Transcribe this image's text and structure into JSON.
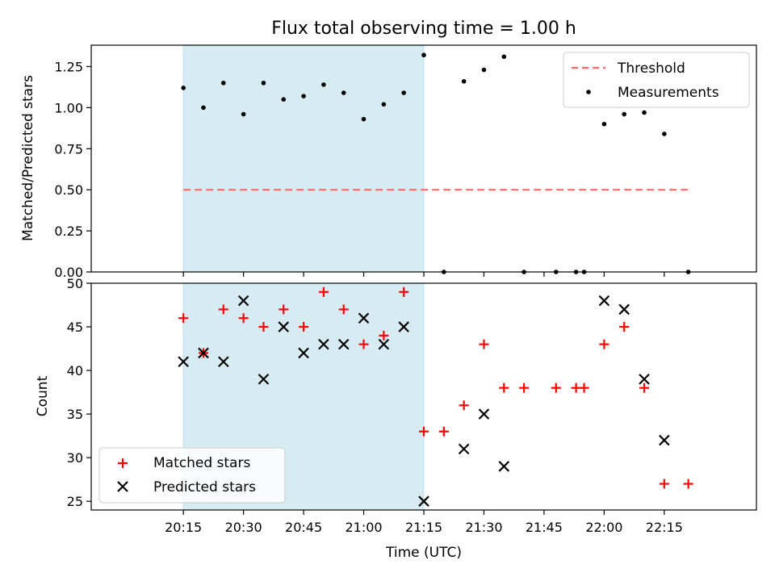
{
  "chart_data": [
    {
      "type": "scatter",
      "panel": "top",
      "title": "Flux total observing time = 1.00 h",
      "xlabel": "",
      "ylabel": "Matched/Predicted stars",
      "ylim": [
        0,
        1.38
      ],
      "yticks": [
        0.0,
        0.25,
        0.5,
        0.75,
        1.0,
        1.25
      ],
      "ytick_labels": [
        "0.00",
        "0.25",
        "0.50",
        "0.75",
        "1.00",
        "1.25"
      ],
      "legend": {
        "placement": "top-right",
        "entries": [
          "Threshold",
          "Measurements"
        ]
      },
      "shaded_interval": {
        "from": "20:15",
        "to": "21:15",
        "color": "#add8e6"
      },
      "threshold": {
        "name": "Threshold",
        "value": 0.5,
        "from": "20:15",
        "to": "22:21",
        "color": "#ff6b6b"
      },
      "series": [
        {
          "name": "Measurements",
          "marker": "dot",
          "color": "#000000",
          "x": [
            "20:15",
            "20:20",
            "20:25",
            "20:30",
            "20:35",
            "20:40",
            "20:45",
            "20:50",
            "20:55",
            "21:00",
            "21:05",
            "21:10",
            "21:15",
            "21:20",
            "21:25",
            "21:30",
            "21:35",
            "21:40",
            "21:48",
            "21:53",
            "21:55",
            "22:00",
            "22:05",
            "22:10",
            "22:15",
            "22:21"
          ],
          "y": [
            1.12,
            1.0,
            1.15,
            0.96,
            1.15,
            1.05,
            1.07,
            1.14,
            1.09,
            0.93,
            1.02,
            1.09,
            1.32,
            0.0,
            1.16,
            1.23,
            1.31,
            0.0,
            0.0,
            0.0,
            0.0,
            0.9,
            0.96,
            0.97,
            0.84,
            0.0
          ]
        }
      ]
    },
    {
      "type": "scatter",
      "panel": "bottom",
      "title": "",
      "xlabel": "Time (UTC)",
      "ylabel": "Count",
      "ylim": [
        24,
        50
      ],
      "yticks": [
        25,
        30,
        35,
        40,
        45,
        50
      ],
      "ytick_labels": [
        "25",
        "30",
        "35",
        "40",
        "45",
        "50"
      ],
      "xticks": [
        "20:15",
        "20:30",
        "20:45",
        "21:00",
        "21:15",
        "21:30",
        "21:45",
        "22:00",
        "22:15"
      ],
      "legend": {
        "placement": "bottom-left",
        "entries": [
          "Matched stars",
          "Predicted stars"
        ]
      },
      "shaded_interval": {
        "from": "20:15",
        "to": "21:15",
        "color": "#add8e6"
      },
      "series": [
        {
          "name": "Matched stars",
          "marker": "plus",
          "color": "#ff0000",
          "x": [
            "20:15",
            "20:20",
            "20:25",
            "20:30",
            "20:35",
            "20:40",
            "20:45",
            "20:50",
            "20:55",
            "21:00",
            "21:05",
            "21:10",
            "21:15",
            "21:20",
            "21:25",
            "21:30",
            "21:35",
            "21:40",
            "21:48",
            "21:53",
            "21:55",
            "22:00",
            "22:05",
            "22:10",
            "22:15",
            "22:21"
          ],
          "y": [
            46,
            42,
            47,
            46,
            45,
            47,
            45,
            49,
            47,
            43,
            44,
            49,
            33,
            33,
            36,
            43,
            38,
            38,
            38,
            38,
            38,
            43,
            45,
            38,
            27,
            27
          ]
        },
        {
          "name": "Predicted stars",
          "marker": "x",
          "color": "#000000",
          "x": [
            "20:15",
            "20:20",
            "20:25",
            "20:30",
            "20:35",
            "20:40",
            "20:45",
            "20:50",
            "20:55",
            "21:00",
            "21:05",
            "21:10",
            "21:15",
            "21:25",
            "21:30",
            "21:35",
            "22:00",
            "22:05",
            "22:10",
            "22:15"
          ],
          "y": [
            41,
            42,
            41,
            48,
            39,
            45,
            42,
            43,
            43,
            46,
            43,
            45,
            25,
            31,
            35,
            29,
            48,
            47,
            39,
            32
          ]
        }
      ]
    }
  ]
}
